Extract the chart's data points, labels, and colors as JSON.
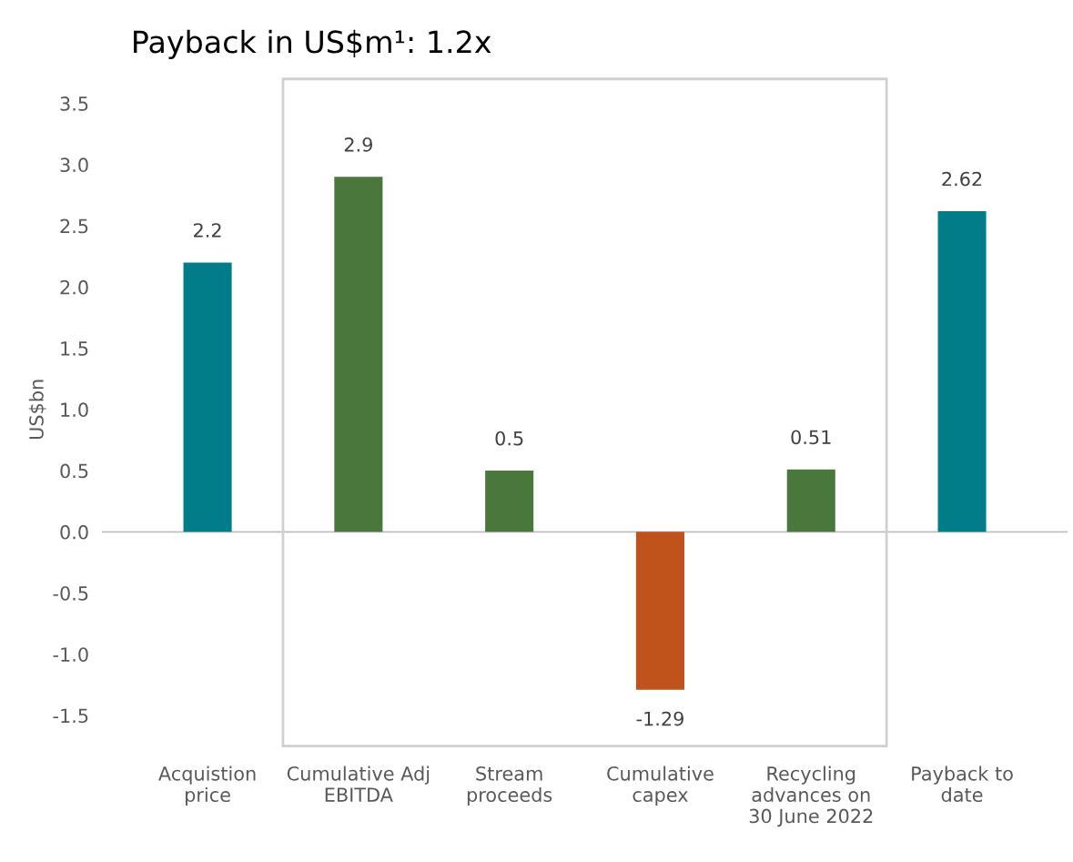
{
  "chart_data": {
    "type": "bar",
    "title": "Payback in US$m¹: 1.2x",
    "ylabel": "US$bn",
    "categories": [
      "Acquistion\nprice",
      "Cumulative Adj\nEBITDA",
      "Stream\nproceeds",
      "Cumulative\ncapex",
      "Recycling\nadvances on\n30 June 2022",
      "Payback to\ndate"
    ],
    "values": [
      2.2,
      2.9,
      0.5,
      -1.29,
      0.51,
      2.62
    ],
    "colors": [
      "#007d89",
      "#4a773c",
      "#4a773c",
      "#c0521c",
      "#4a773c",
      "#007d89"
    ],
    "value_labels": [
      "2.2",
      "2.9",
      "0.5",
      "-1.29",
      "0.51",
      "2.62"
    ],
    "ylim": [
      -1.5,
      3.5
    ],
    "yticks": [
      {
        "value": -1.5,
        "label": "-1.5"
      },
      {
        "value": -1.0,
        "label": "-1.0"
      },
      {
        "value": -0.5,
        "label": "-0.5"
      },
      {
        "value": 0.0,
        "label": "0.0"
      },
      {
        "value": 0.5,
        "label": "0.5"
      },
      {
        "value": 1.0,
        "label": "1.0"
      },
      {
        "value": 1.5,
        "label": "1.5"
      },
      {
        "value": 2.0,
        "label": "2.0"
      },
      {
        "value": 2.5,
        "label": "2.5"
      },
      {
        "value": 3.0,
        "label": "3.0"
      },
      {
        "value": 3.5,
        "label": "3.5"
      }
    ],
    "ref_lines": [
      {
        "axis": "y",
        "value": 0,
        "color": "#bfbfbf"
      }
    ],
    "grid": false,
    "legend": false
  }
}
